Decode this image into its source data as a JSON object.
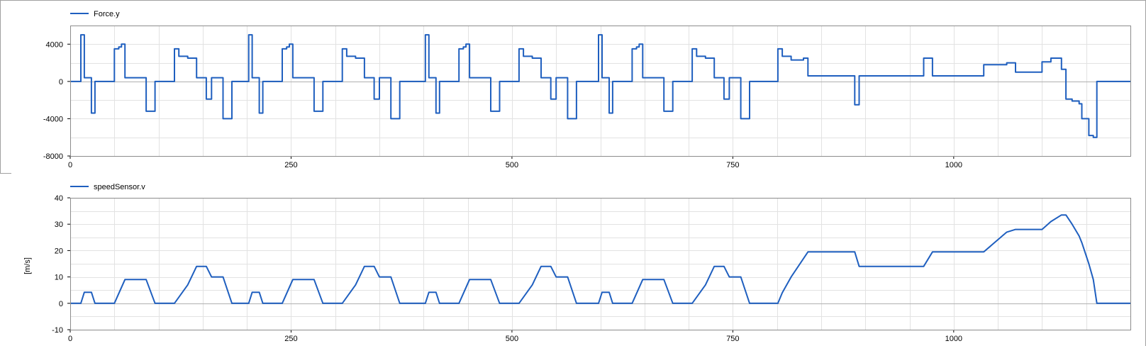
{
  "chart_data": [
    {
      "type": "line",
      "legend": "Force.y",
      "ylabel": "",
      "xlim": [
        0,
        1200
      ],
      "ylim": [
        -8000,
        6000
      ],
      "yticks": [
        4000,
        0,
        -4000,
        -8000
      ],
      "xticks": [
        0,
        250,
        500,
        750,
        1000
      ],
      "color": "#1f5fbf",
      "series": [
        {
          "name": "Force.y",
          "points": [
            [
              0,
              0
            ],
            [
              12,
              0
            ],
            [
              12,
              5000
            ],
            [
              16,
              5000
            ],
            [
              16,
              400
            ],
            [
              24,
              400
            ],
            [
              24,
              -3400
            ],
            [
              28,
              -3400
            ],
            [
              28,
              0
            ],
            [
              50,
              0
            ],
            [
              50,
              3500
            ],
            [
              55,
              3500
            ],
            [
              55,
              3700
            ],
            [
              58,
              3700
            ],
            [
              58,
              4000
            ],
            [
              62,
              4000
            ],
            [
              62,
              400
            ],
            [
              86,
              400
            ],
            [
              86,
              -3200
            ],
            [
              96,
              -3200
            ],
            [
              96,
              0
            ],
            [
              118,
              0
            ],
            [
              118,
              3500
            ],
            [
              123,
              3500
            ],
            [
              123,
              2700
            ],
            [
              133,
              2700
            ],
            [
              133,
              2500
            ],
            [
              143,
              2500
            ],
            [
              143,
              400
            ],
            [
              154,
              400
            ],
            [
              154,
              -1900
            ],
            [
              160,
              -1900
            ],
            [
              160,
              400
            ],
            [
              173,
              400
            ],
            [
              173,
              -4000
            ],
            [
              183,
              -4000
            ],
            [
              183,
              0
            ],
            [
              202,
              0
            ],
            [
              202,
              5000
            ],
            [
              206,
              5000
            ],
            [
              206,
              400
            ],
            [
              214,
              400
            ],
            [
              214,
              -3400
            ],
            [
              218,
              -3400
            ],
            [
              218,
              0
            ],
            [
              240,
              0
            ],
            [
              240,
              3500
            ],
            [
              245,
              3500
            ],
            [
              245,
              3700
            ],
            [
              248,
              3700
            ],
            [
              248,
              4000
            ],
            [
              252,
              4000
            ],
            [
              252,
              400
            ],
            [
              276,
              400
            ],
            [
              276,
              -3200
            ],
            [
              286,
              -3200
            ],
            [
              286,
              0
            ],
            [
              308,
              0
            ],
            [
              308,
              3500
            ],
            [
              313,
              3500
            ],
            [
              313,
              2700
            ],
            [
              323,
              2700
            ],
            [
              323,
              2500
            ],
            [
              333,
              2500
            ],
            [
              333,
              400
            ],
            [
              344,
              400
            ],
            [
              344,
              -1900
            ],
            [
              350,
              -1900
            ],
            [
              350,
              400
            ],
            [
              363,
              400
            ],
            [
              363,
              -4000
            ],
            [
              373,
              -4000
            ],
            [
              373,
              0
            ],
            [
              402,
              0
            ],
            [
              402,
              5000
            ],
            [
              406,
              5000
            ],
            [
              406,
              400
            ],
            [
              414,
              400
            ],
            [
              414,
              -3400
            ],
            [
              418,
              -3400
            ],
            [
              418,
              0
            ],
            [
              440,
              0
            ],
            [
              440,
              3500
            ],
            [
              445,
              3500
            ],
            [
              445,
              3700
            ],
            [
              448,
              3700
            ],
            [
              448,
              4000
            ],
            [
              452,
              4000
            ],
            [
              452,
              400
            ],
            [
              476,
              400
            ],
            [
              476,
              -3200
            ],
            [
              486,
              -3200
            ],
            [
              486,
              0
            ],
            [
              508,
              0
            ],
            [
              508,
              3500
            ],
            [
              513,
              3500
            ],
            [
              513,
              2700
            ],
            [
              523,
              2700
            ],
            [
              523,
              2500
            ],
            [
              533,
              2500
            ],
            [
              533,
              400
            ],
            [
              544,
              400
            ],
            [
              544,
              -1900
            ],
            [
              550,
              -1900
            ],
            [
              550,
              400
            ],
            [
              563,
              400
            ],
            [
              563,
              -4000
            ],
            [
              573,
              -4000
            ],
            [
              573,
              0
            ],
            [
              598,
              0
            ],
            [
              598,
              5000
            ],
            [
              602,
              5000
            ],
            [
              602,
              400
            ],
            [
              610,
              400
            ],
            [
              610,
              -3400
            ],
            [
              614,
              -3400
            ],
            [
              614,
              0
            ],
            [
              636,
              0
            ],
            [
              636,
              3500
            ],
            [
              641,
              3500
            ],
            [
              641,
              3700
            ],
            [
              644,
              3700
            ],
            [
              644,
              4000
            ],
            [
              648,
              4000
            ],
            [
              648,
              400
            ],
            [
              672,
              400
            ],
            [
              672,
              -3200
            ],
            [
              682,
              -3200
            ],
            [
              682,
              0
            ],
            [
              704,
              0
            ],
            [
              704,
              3500
            ],
            [
              709,
              3500
            ],
            [
              709,
              2700
            ],
            [
              719,
              2700
            ],
            [
              719,
              2500
            ],
            [
              729,
              2500
            ],
            [
              729,
              400
            ],
            [
              740,
              400
            ],
            [
              740,
              -1900
            ],
            [
              746,
              -1900
            ],
            [
              746,
              400
            ],
            [
              759,
              400
            ],
            [
              759,
              -4000
            ],
            [
              769,
              -4000
            ],
            [
              769,
              0
            ],
            [
              801,
              0
            ],
            [
              801,
              3500
            ],
            [
              806,
              3500
            ],
            [
              806,
              2700
            ],
            [
              816,
              2700
            ],
            [
              816,
              2300
            ],
            [
              830,
              2300
            ],
            [
              830,
              2500
            ],
            [
              835,
              2500
            ],
            [
              835,
              600
            ],
            [
              888,
              600
            ],
            [
              888,
              -2500
            ],
            [
              893,
              -2500
            ],
            [
              893,
              600
            ],
            [
              966,
              600
            ],
            [
              966,
              2500
            ],
            [
              976,
              2500
            ],
            [
              976,
              600
            ],
            [
              1034,
              600
            ],
            [
              1034,
              1800
            ],
            [
              1060,
              1800
            ],
            [
              1060,
              2000
            ],
            [
              1070,
              2000
            ],
            [
              1070,
              1000
            ],
            [
              1100,
              1000
            ],
            [
              1100,
              2100
            ],
            [
              1110,
              2100
            ],
            [
              1110,
              2500
            ],
            [
              1122,
              2500
            ],
            [
              1122,
              1300
            ],
            [
              1127,
              1300
            ],
            [
              1127,
              -1900
            ],
            [
              1134,
              -1900
            ],
            [
              1134,
              -2100
            ],
            [
              1142,
              -2100
            ],
            [
              1142,
              -2400
            ],
            [
              1145,
              -2400
            ],
            [
              1145,
              -4000
            ],
            [
              1153,
              -4000
            ],
            [
              1153,
              -5800
            ],
            [
              1158,
              -5800
            ],
            [
              1158,
              -6000
            ],
            [
              1162,
              -6000
            ],
            [
              1162,
              0
            ],
            [
              1200,
              0
            ]
          ]
        }
      ]
    },
    {
      "type": "line",
      "legend": "speedSensor.v",
      "ylabel": "[m/s]",
      "xlim": [
        0,
        1200
      ],
      "ylim": [
        -10,
        40
      ],
      "yticks": [
        40,
        30,
        20,
        10,
        0,
        -10
      ],
      "xticks": [
        0,
        250,
        500,
        750,
        1000
      ],
      "color": "#1f5fbf",
      "series": [
        {
          "name": "speedSensor.v",
          "points": [
            [
              0,
              0
            ],
            [
              12,
              0
            ],
            [
              16,
              4.2
            ],
            [
              24,
              4.2
            ],
            [
              28,
              0
            ],
            [
              50,
              0
            ],
            [
              62,
              9
            ],
            [
              86,
              9
            ],
            [
              96,
              0
            ],
            [
              118,
              0
            ],
            [
              133,
              7
            ],
            [
              143,
              14
            ],
            [
              154,
              14
            ],
            [
              160,
              10
            ],
            [
              173,
              10
            ],
            [
              183,
              0
            ],
            [
              202,
              0
            ],
            [
              206,
              4.2
            ],
            [
              214,
              4.2
            ],
            [
              218,
              0
            ],
            [
              240,
              0
            ],
            [
              252,
              9
            ],
            [
              276,
              9
            ],
            [
              286,
              0
            ],
            [
              308,
              0
            ],
            [
              323,
              7
            ],
            [
              333,
              14
            ],
            [
              344,
              14
            ],
            [
              350,
              10
            ],
            [
              363,
              10
            ],
            [
              373,
              0
            ],
            [
              402,
              0
            ],
            [
              406,
              4.2
            ],
            [
              414,
              4.2
            ],
            [
              418,
              0
            ],
            [
              440,
              0
            ],
            [
              452,
              9
            ],
            [
              476,
              9
            ],
            [
              486,
              0
            ],
            [
              508,
              0
            ],
            [
              523,
              7
            ],
            [
              533,
              14
            ],
            [
              544,
              14
            ],
            [
              550,
              10
            ],
            [
              563,
              10
            ],
            [
              573,
              0
            ],
            [
              598,
              0
            ],
            [
              602,
              4.2
            ],
            [
              610,
              4.2
            ],
            [
              614,
              0
            ],
            [
              636,
              0
            ],
            [
              648,
              9
            ],
            [
              672,
              9
            ],
            [
              682,
              0
            ],
            [
              704,
              0
            ],
            [
              719,
              7
            ],
            [
              729,
              14
            ],
            [
              740,
              14
            ],
            [
              746,
              10
            ],
            [
              759,
              10
            ],
            [
              769,
              0
            ],
            [
              801,
              0
            ],
            [
              806,
              4
            ],
            [
              816,
              10
            ],
            [
              835,
              19.5
            ],
            [
              888,
              19.5
            ],
            [
              893,
              14
            ],
            [
              966,
              14
            ],
            [
              976,
              19.5
            ],
            [
              1034,
              19.5
            ],
            [
              1060,
              27
            ],
            [
              1070,
              28
            ],
            [
              1100,
              28
            ],
            [
              1110,
              31
            ],
            [
              1122,
              33.5
            ],
            [
              1127,
              33.5
            ],
            [
              1134,
              30
            ],
            [
              1142,
              25.5
            ],
            [
              1145,
              23
            ],
            [
              1153,
              15
            ],
            [
              1158,
              9
            ],
            [
              1162,
              0
            ],
            [
              1200,
              0
            ]
          ]
        }
      ]
    }
  ]
}
